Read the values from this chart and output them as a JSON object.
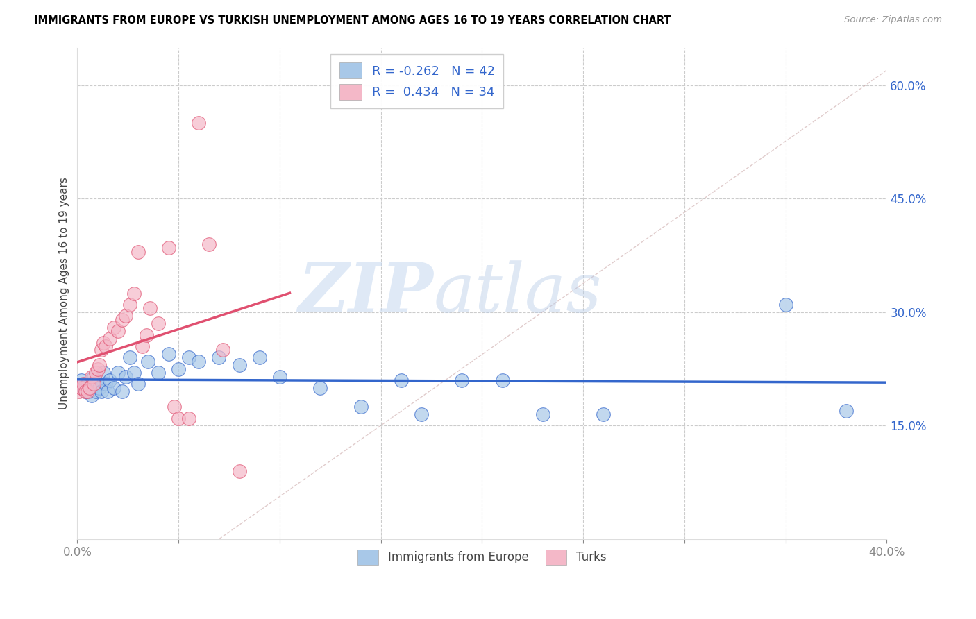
{
  "title": "IMMIGRANTS FROM EUROPE VS TURKISH UNEMPLOYMENT AMONG AGES 16 TO 19 YEARS CORRELATION CHART",
  "source": "Source: ZipAtlas.com",
  "ylabel": "Unemployment Among Ages 16 to 19 years",
  "xlim": [
    0.0,
    0.4
  ],
  "ylim": [
    0.0,
    0.65
  ],
  "xtick_vals": [
    0.0,
    0.05,
    0.1,
    0.15,
    0.2,
    0.25,
    0.3,
    0.35,
    0.4
  ],
  "xticklabels": [
    "0.0%",
    "",
    "",
    "",
    "",
    "",
    "",
    "",
    "40.0%"
  ],
  "yticks_right": [
    0.15,
    0.3,
    0.45,
    0.6
  ],
  "ytick_labels_right": [
    "15.0%",
    "30.0%",
    "45.0%",
    "60.0%"
  ],
  "blue_R": -0.262,
  "blue_N": 42,
  "pink_R": 0.434,
  "pink_N": 34,
  "blue_color": "#a8c8e8",
  "blue_line_color": "#3366cc",
  "pink_color": "#f4b8c8",
  "pink_line_color": "#e05070",
  "legend_label_blue": "Immigrants from Europe",
  "legend_label_pink": "Turks",
  "blue_scatter_x": [
    0.002,
    0.003,
    0.004,
    0.005,
    0.006,
    0.007,
    0.008,
    0.009,
    0.01,
    0.011,
    0.012,
    0.013,
    0.014,
    0.015,
    0.016,
    0.018,
    0.02,
    0.022,
    0.024,
    0.026,
    0.028,
    0.03,
    0.035,
    0.04,
    0.045,
    0.05,
    0.055,
    0.06,
    0.07,
    0.08,
    0.09,
    0.1,
    0.12,
    0.14,
    0.16,
    0.17,
    0.19,
    0.21,
    0.23,
    0.26,
    0.35,
    0.38
  ],
  "blue_scatter_y": [
    0.21,
    0.2,
    0.195,
    0.205,
    0.195,
    0.19,
    0.215,
    0.195,
    0.205,
    0.2,
    0.195,
    0.22,
    0.205,
    0.195,
    0.21,
    0.2,
    0.22,
    0.195,
    0.215,
    0.24,
    0.22,
    0.205,
    0.235,
    0.22,
    0.245,
    0.225,
    0.24,
    0.235,
    0.24,
    0.23,
    0.24,
    0.215,
    0.2,
    0.175,
    0.21,
    0.165,
    0.21,
    0.21,
    0.165,
    0.165,
    0.31,
    0.17
  ],
  "pink_scatter_x": [
    0.001,
    0.002,
    0.003,
    0.004,
    0.005,
    0.006,
    0.007,
    0.008,
    0.009,
    0.01,
    0.011,
    0.012,
    0.013,
    0.014,
    0.016,
    0.018,
    0.02,
    0.022,
    0.024,
    0.026,
    0.028,
    0.03,
    0.032,
    0.034,
    0.036,
    0.04,
    0.045,
    0.048,
    0.05,
    0.055,
    0.06,
    0.065,
    0.072,
    0.08
  ],
  "pink_scatter_y": [
    0.195,
    0.2,
    0.205,
    0.195,
    0.195,
    0.2,
    0.215,
    0.205,
    0.22,
    0.225,
    0.23,
    0.25,
    0.26,
    0.255,
    0.265,
    0.28,
    0.275,
    0.29,
    0.295,
    0.31,
    0.325,
    0.38,
    0.255,
    0.27,
    0.305,
    0.285,
    0.385,
    0.175,
    0.16,
    0.16,
    0.55,
    0.39,
    0.25,
    0.09
  ]
}
